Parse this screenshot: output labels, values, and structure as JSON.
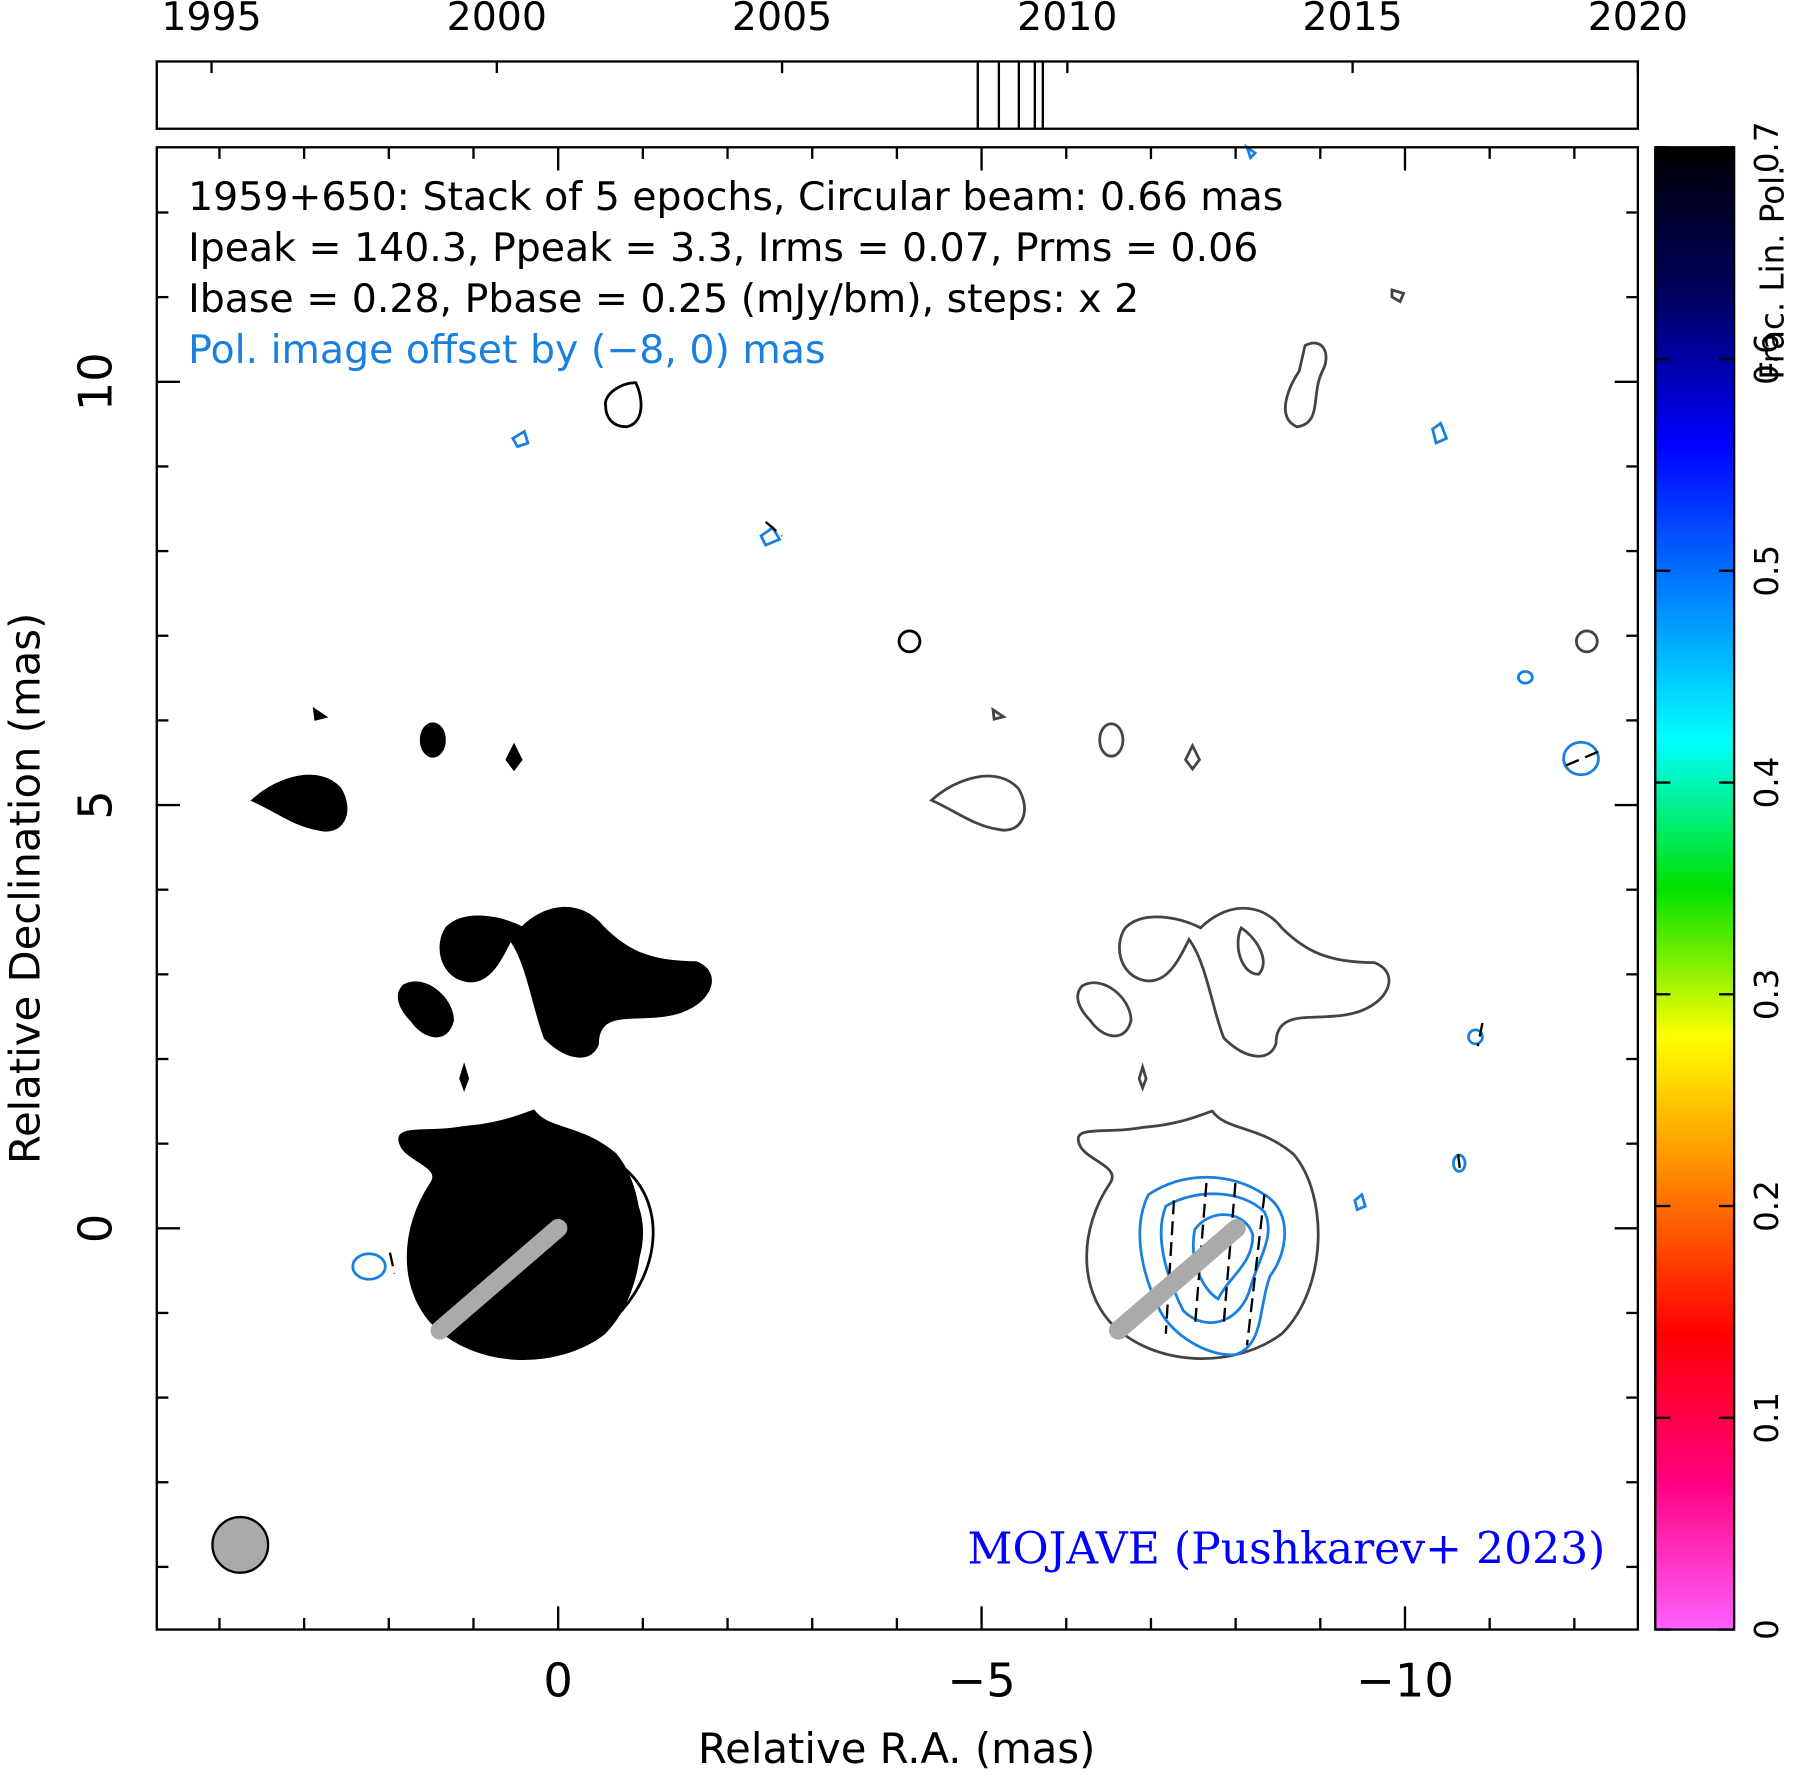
{
  "chart_data": {
    "type": "map",
    "title_lines": [
      "1959+650: Stack of 5 epochs, Circular beam: 0.66 mas",
      "Ipeak = 140.3, Ppeak = 3.3, Irms = 0.07, Prms = 0.06",
      "Ibase = 0.28, Pbase = 0.25 (mJy/bm), steps: x 2"
    ],
    "pol_note": "Pol. image offset by (−8, 0) mas",
    "credit": "MOJAVE (Pushkarev+ 2023)",
    "xlabel": "Relative R.A. (mas)",
    "ylabel": "Relative Declination (mas)",
    "xlim": [
      4.74,
      -12.75
    ],
    "ylim": [
      -4.74,
      12.77
    ],
    "xticks": [
      0,
      {
        "value": -5,
        "label": "−5"
      },
      {
        "value": -10,
        "label": "−10"
      }
    ],
    "yticks": [
      0,
      5,
      10
    ],
    "x_minor_ticks": [
      4,
      3,
      2,
      1,
      -1,
      -2,
      -3,
      -4,
      -6,
      -7,
      -8,
      -9,
      -11,
      -12
    ],
    "y_minor_ticks": [
      -4,
      -3,
      -2,
      -1,
      1,
      2,
      3,
      4,
      6,
      7,
      8,
      9,
      11,
      12
    ],
    "timeline": {
      "xlim": [
        1994.04,
        2020
      ],
      "xticks": [
        1995,
        2000,
        2005,
        2010,
        2015,
        2020
      ],
      "epochs": [
        2008.43,
        2008.8,
        2009.15,
        2009.43,
        2009.57
      ]
    },
    "colorbar": {
      "label": "Frac. Lin. Pol.",
      "ylim": [
        0,
        0.7
      ],
      "yticks": [
        0,
        0.1,
        0.2,
        0.3,
        0.4,
        0.5,
        0.6,
        0.7
      ],
      "colors": [
        "#ff60ff",
        "#ff0080",
        "#ff0000",
        "#ff8000",
        "#ffff00",
        "#00e000",
        "#00ffff",
        "#0080ff",
        "#0000ff",
        "#000060",
        "#000000"
      ]
    }
  }
}
